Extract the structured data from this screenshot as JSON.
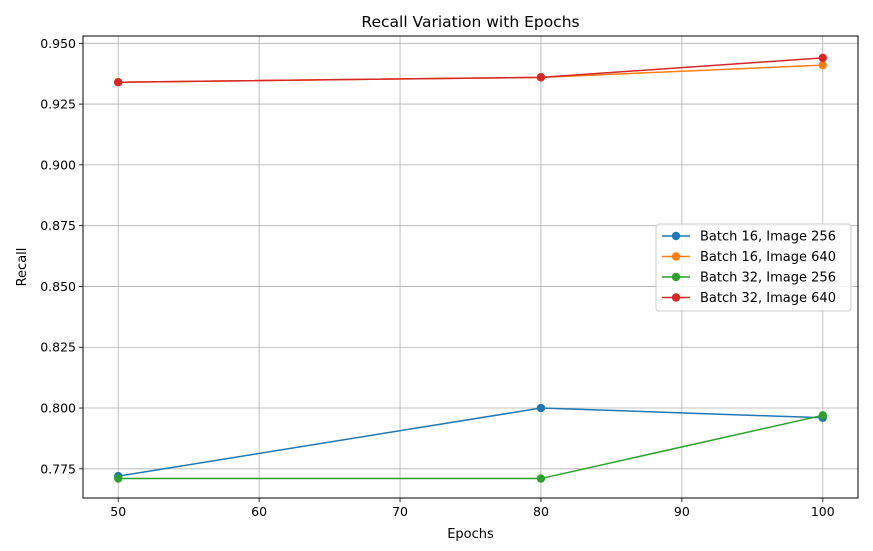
{
  "chart_data": {
    "type": "line",
    "title": "Recall Variation with Epochs",
    "xlabel": "Epochs",
    "ylabel": "Recall",
    "x": [
      50,
      80,
      100
    ],
    "xlim": [
      47.5,
      102.5
    ],
    "ylim": [
      0.763,
      0.953
    ],
    "xticks": [
      50,
      60,
      70,
      80,
      90,
      100
    ],
    "yticks": [
      "0.775",
      "0.800",
      "0.825",
      "0.850",
      "0.875",
      "0.900",
      "0.925",
      "0.950"
    ],
    "grid": true,
    "legend_position": "center-right",
    "series": [
      {
        "name": "Batch 16, Image 256",
        "color": "#1f77b4",
        "values": [
          0.772,
          0.8,
          0.796
        ]
      },
      {
        "name": "Batch 16, Image 640",
        "color": "#ff7f0e",
        "values": [
          0.934,
          0.936,
          0.941
        ]
      },
      {
        "name": "Batch 32, Image 256",
        "color": "#2ca02c",
        "values": [
          0.771,
          0.771,
          0.797
        ]
      },
      {
        "name": "Batch 32, Image 640",
        "color": "#d62728",
        "values": [
          0.934,
          0.936,
          0.944
        ]
      }
    ]
  }
}
